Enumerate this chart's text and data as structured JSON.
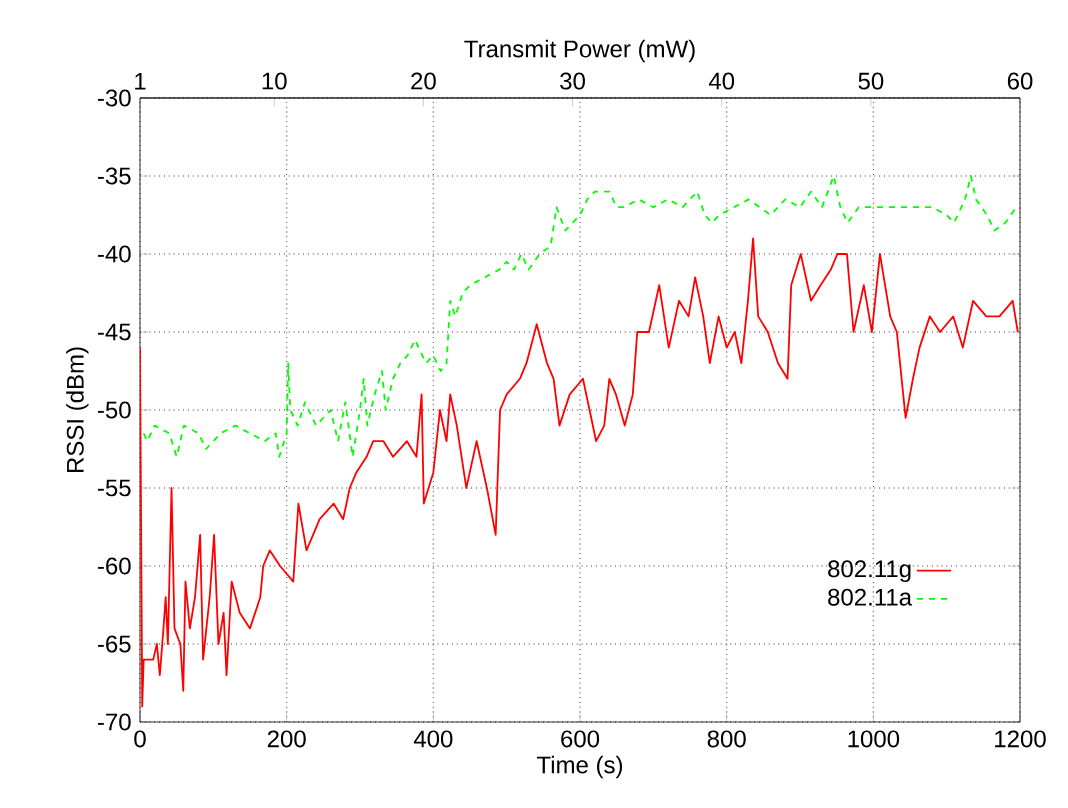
{
  "chart_data": {
    "type": "line",
    "xlabel": "Time (s)",
    "ylabel": "RSSI (dBm)",
    "x2label": "Transmit Power (mW)",
    "xlim": [
      0,
      1200
    ],
    "xticks": [
      0,
      200,
      400,
      600,
      800,
      1000,
      1200
    ],
    "x2lim": [
      1,
      60
    ],
    "x2ticks": [
      1,
      10,
      20,
      30,
      40,
      50,
      60
    ],
    "ylim": [
      -70,
      -30
    ],
    "yticks": [
      -70,
      -65,
      -60,
      -55,
      -50,
      -45,
      -40,
      -35,
      -30
    ],
    "grid": true,
    "legend": "right",
    "marker": "none",
    "series": [
      {
        "name": "802.11g",
        "color": "#ff0000",
        "line_style": "solid",
        "x": [
          0,
          3,
          5,
          18,
          23,
          27,
          32,
          35,
          38,
          43,
          47,
          55,
          59,
          62,
          68,
          75,
          82,
          86,
          95,
          101,
          107,
          114,
          118,
          125,
          136,
          150,
          164,
          168,
          177,
          191,
          209,
          216,
          227,
          236,
          245,
          264,
          277,
          286,
          295,
          309,
          318,
          332,
          345,
          364,
          377,
          384,
          387,
          400,
          409,
          418,
          423,
          432,
          445,
          459,
          473,
          485,
          491,
          500,
          518,
          527,
          541,
          555,
          564,
          572,
          586,
          604,
          613,
          622,
          633,
          640,
          649,
          661,
          672,
          678,
          694,
          708,
          721,
          735,
          748,
          757,
          768,
          777,
          789,
          800,
          811,
          820,
          829,
          836,
          843,
          856,
          870,
          883,
          888,
          901,
          915,
          928,
          942,
          951,
          964,
          973,
          987,
          998,
          1009,
          1023,
          1032,
          1044,
          1054,
          1063,
          1077,
          1091,
          1109,
          1122,
          1136,
          1154,
          1172,
          1190,
          1197
        ],
        "values": [
          -46,
          -69,
          -66,
          -66,
          -65,
          -67,
          -64,
          -62,
          -65,
          -55,
          -64,
          -65,
          -68,
          -61,
          -64,
          -62,
          -58,
          -66,
          -62,
          -58,
          -65,
          -63,
          -67,
          -61,
          -63,
          -64,
          -62,
          -60,
          -59,
          -60,
          -61,
          -56,
          -59,
          -58,
          -57,
          -56,
          -57,
          -55,
          -54,
          -53,
          -52,
          -52,
          -53,
          -52,
          -53,
          -49,
          -56,
          -54,
          -50,
          -52,
          -49,
          -51,
          -55,
          -52,
          -55,
          -58,
          -50,
          -49,
          -48,
          -47,
          -44.5,
          -47,
          -48,
          -51,
          -49,
          -48,
          -50,
          -52,
          -51,
          -48,
          -49,
          -51,
          -49,
          -45,
          -45,
          -42,
          -46,
          -43,
          -44,
          -41.5,
          -44,
          -47,
          -44,
          -46,
          -45,
          -47,
          -43,
          -39,
          -44,
          -45,
          -47,
          -48,
          -42,
          -40,
          -43,
          -42,
          -41,
          -40,
          -40,
          -45,
          -42,
          -45,
          -40,
          -44,
          -45,
          -50.5,
          -48,
          -46,
          -44,
          -45,
          -44,
          -46,
          -43,
          -44,
          -44,
          -43,
          -45
        ]
      },
      {
        "name": "802.11a",
        "color": "#00ff00",
        "line_style": "dashed",
        "x": [
          5,
          10,
          20,
          40,
          50,
          60,
          80,
          90,
          110,
          130,
          150,
          170,
          185,
          190,
          200,
          202,
          205,
          215,
          225,
          240,
          260,
          270,
          280,
          290,
          300,
          305,
          310,
          320,
          330,
          335,
          345,
          355,
          365,
          375,
          390,
          400,
          410,
          418,
          423,
          430,
          440,
          450,
          470,
          490,
          500,
          510,
          520,
          530,
          545,
          560,
          568,
          580,
          590,
          600,
          610,
          620,
          625,
          640,
          650,
          660,
          680,
          700,
          720,
          740,
          760,
          770,
          780,
          790,
          810,
          830,
          845,
          860,
          880,
          900,
          915,
          930,
          946,
          955,
          965,
          980,
          1000,
          1020,
          1040,
          1060,
          1080,
          1100,
          1110,
          1125,
          1133,
          1140,
          1155,
          1165,
          1180,
          1195
        ],
        "values": [
          -51.5,
          -52,
          -51,
          -51.5,
          -53,
          -51,
          -51.5,
          -52.5,
          -51.5,
          -51,
          -51.5,
          -52,
          -51.5,
          -53,
          -51.5,
          -47,
          -50,
          -51,
          -49.5,
          -51,
          -50,
          -52,
          -49.5,
          -53,
          -50,
          -48,
          -51,
          -49,
          -47.5,
          -50,
          -48,
          -47,
          -46.5,
          -45.5,
          -47,
          -46.5,
          -47.5,
          -47,
          -43,
          -44,
          -42.5,
          -42,
          -41.5,
          -41,
          -40.5,
          -41,
          -40,
          -41,
          -40,
          -39.5,
          -37,
          -38.5,
          -38,
          -37.5,
          -36.5,
          -36,
          -36,
          -36,
          -37,
          -37,
          -36.5,
          -37,
          -36.5,
          -37,
          -36,
          -37.5,
          -38,
          -37.5,
          -37,
          -36.5,
          -37,
          -37.5,
          -36.5,
          -37,
          -36,
          -37,
          -35,
          -37,
          -38,
          -37,
          -37,
          -37,
          -37,
          -37,
          -37,
          -37.5,
          -38,
          -36.5,
          -35,
          -36.5,
          -37.5,
          -38.5,
          -38,
          -37
        ]
      }
    ]
  }
}
